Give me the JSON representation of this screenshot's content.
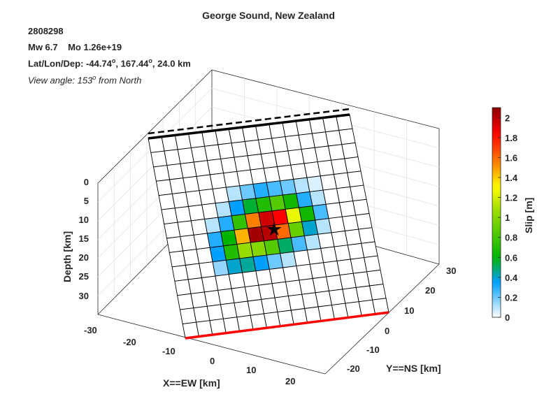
{
  "header": {
    "title": "George Sound, New Zealand",
    "event_id": "2808298",
    "mw_label": "Mw 6.7",
    "mo_label": "Mo 1.26e+19",
    "location_prefix": "Lat/Lon/Dep: -44.74",
    "location_lon": ", 167.44",
    "location_dep": ", 24.0 km",
    "degree_symbol": "o",
    "view_prefix": "View angle: 153",
    "view_suffix": " from North"
  },
  "chart_data": {
    "type": "heatmap",
    "title": "George Sound, New Zealand",
    "xlabel": "X==EW [km]",
    "ylabel": "Y==NS [km]",
    "zlabel": "Depth [km]",
    "x_ticks": [
      "-30",
      "-20",
      "-10",
      "0",
      "10",
      "20"
    ],
    "y_ticks": [
      "-20",
      "-10",
      "0",
      "10",
      "20",
      "30"
    ],
    "z_ticks": [
      "0",
      "5",
      "10",
      "15",
      "20",
      "25",
      "30"
    ],
    "colorbar": {
      "label": "Slip [m]",
      "min": 0,
      "max": 2.1,
      "ticks": [
        "0",
        "0.2",
        "0.4",
        "0.6",
        "0.8",
        "1",
        "1.2",
        "1.4",
        "1.6",
        "1.8",
        "2"
      ]
    },
    "fault_grid": {
      "cols": 15,
      "rows": 14,
      "slip_m": [
        [
          0,
          0,
          0,
          0,
          0,
          0,
          0,
          0,
          0,
          0,
          0,
          0,
          0,
          0,
          0
        ],
        [
          0,
          0,
          0,
          0,
          0,
          0,
          0,
          0,
          0,
          0,
          0,
          0,
          0,
          0,
          0
        ],
        [
          0,
          0,
          0,
          0,
          0,
          0,
          0,
          0,
          0,
          0,
          0,
          0,
          0,
          0,
          0
        ],
        [
          0,
          0,
          0,
          0,
          0,
          0,
          0,
          0,
          0,
          0,
          0,
          0,
          0,
          0,
          0
        ],
        [
          0,
          0,
          0,
          0,
          0,
          0.1,
          0.2,
          0.3,
          0.25,
          0.2,
          0.1,
          0.05,
          0,
          0,
          0
        ],
        [
          0,
          0,
          0,
          0,
          0.1,
          0.35,
          0.55,
          0.7,
          0.85,
          0.65,
          0.3,
          0.1,
          0,
          0,
          0
        ],
        [
          0,
          0,
          0,
          0.1,
          0.3,
          0.75,
          1.55,
          1.95,
          1.85,
          1.25,
          0.65,
          0.25,
          0,
          0,
          0
        ],
        [
          0,
          0,
          0,
          0.3,
          0.6,
          1.45,
          2.05,
          2.0,
          1.6,
          0.9,
          0.4,
          0.1,
          0,
          0,
          0
        ],
        [
          0,
          0,
          0,
          0.35,
          0.7,
          1.05,
          1.0,
          0.85,
          0.5,
          0.25,
          0.1,
          0,
          0,
          0,
          0
        ],
        [
          0,
          0,
          0,
          0.15,
          0.4,
          0.45,
          0.35,
          0.2,
          0.1,
          0,
          0,
          0,
          0,
          0,
          0
        ],
        [
          0,
          0,
          0,
          0,
          0,
          0,
          0,
          0,
          0,
          0,
          0,
          0,
          0,
          0,
          0
        ],
        [
          0,
          0,
          0,
          0,
          0,
          0,
          0,
          0,
          0,
          0,
          0,
          0,
          0,
          0,
          0
        ],
        [
          0,
          0,
          0,
          0,
          0,
          0,
          0,
          0,
          0,
          0,
          0,
          0,
          0,
          0,
          0
        ],
        [
          0,
          0,
          0,
          0,
          0,
          0,
          0,
          0,
          0,
          0,
          0,
          0,
          0,
          0,
          0
        ]
      ]
    },
    "hypocenter": {
      "col": 7.9,
      "row": 7.3
    },
    "grid": true,
    "colormap": [
      "#ffffff",
      "#00a0ff",
      "#00b400",
      "#ffff00",
      "#ff7f00",
      "#ff0000",
      "#8b0000"
    ]
  }
}
